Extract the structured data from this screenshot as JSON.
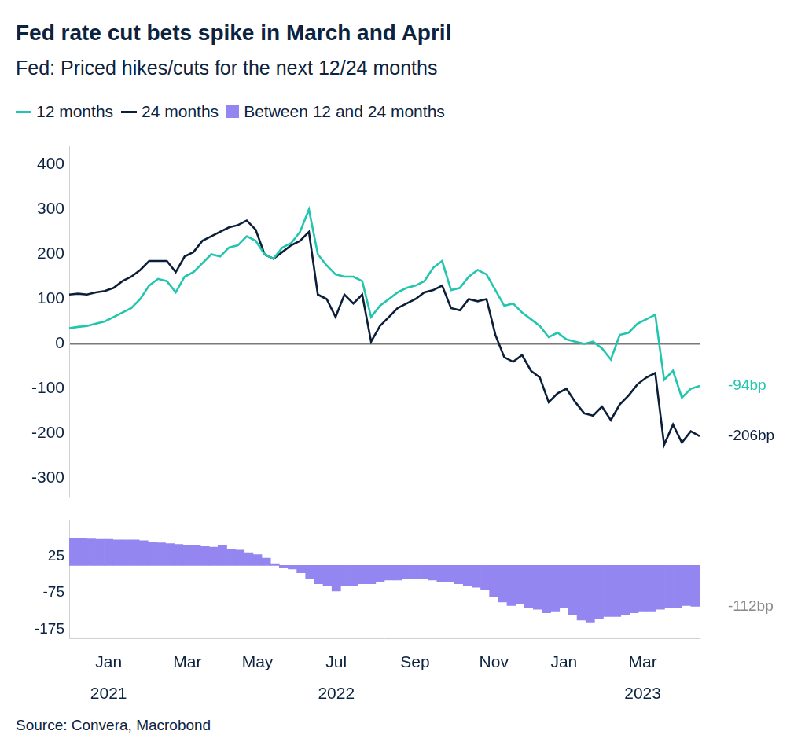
{
  "chart_data": [
    {
      "type": "line",
      "title": "Fed rate cut bets spike in March and April",
      "subtitle": "Fed: Priced hikes/cuts for the next 12/24 months",
      "legend": "top-left",
      "grid": false,
      "tick_labels": "y",
      "categories": [
        null,
        null,
        null,
        null,
        "Jan 2021",
        null,
        null,
        null,
        null,
        null,
        null,
        null,
        null,
        "Mar",
        null,
        null,
        null,
        null,
        null,
        null,
        null,
        "May",
        null,
        null,
        null,
        null,
        null,
        null,
        null,
        null,
        "Jul 2022",
        null,
        null,
        null,
        null,
        null,
        null,
        null,
        null,
        "Sep",
        null,
        null,
        null,
        null,
        null,
        null,
        null,
        null,
        "Nov",
        null,
        null,
        null,
        null,
        null,
        null,
        null,
        "Jan",
        null,
        null,
        null,
        null,
        null,
        null,
        null,
        null,
        "Mar 2023",
        null,
        null,
        null,
        null,
        null,
        null
      ],
      "ylim": [
        -340,
        440
      ],
      "yticks": [
        -300,
        -200,
        -100,
        0,
        100,
        200,
        300,
        400
      ],
      "series": [
        {
          "name": "12 months",
          "color": "#22c5ad",
          "end_label": "-94bp",
          "values": [
            35,
            38,
            40,
            45,
            50,
            60,
            70,
            80,
            100,
            130,
            145,
            140,
            115,
            150,
            160,
            180,
            200,
            195,
            215,
            220,
            240,
            230,
            200,
            190,
            215,
            225,
            250,
            300,
            200,
            175,
            155,
            150,
            150,
            140,
            60,
            85,
            100,
            115,
            125,
            130,
            140,
            170,
            185,
            120,
            125,
            150,
            165,
            155,
            120,
            85,
            90,
            70,
            55,
            40,
            15,
            25,
            10,
            5,
            0,
            5,
            -10,
            -35,
            20,
            25,
            45,
            55,
            65,
            -80,
            -60,
            -120,
            -100,
            -94
          ]
        },
        {
          "name": "24 months",
          "color": "#0b1f3a",
          "end_label": "-206bp",
          "values": [
            110,
            112,
            110,
            115,
            118,
            125,
            140,
            150,
            165,
            185,
            185,
            185,
            160,
            195,
            205,
            230,
            240,
            250,
            260,
            265,
            275,
            255,
            200,
            190,
            205,
            220,
            230,
            250,
            110,
            100,
            60,
            110,
            90,
            110,
            5,
            40,
            60,
            80,
            90,
            100,
            115,
            120,
            130,
            80,
            75,
            100,
            95,
            100,
            20,
            -30,
            -40,
            -25,
            -60,
            -75,
            -130,
            -110,
            -100,
            -130,
            -155,
            -160,
            -140,
            -170,
            -135,
            -115,
            -90,
            -75,
            -65,
            -225,
            -180,
            -220,
            -195,
            -206
          ]
        }
      ]
    },
    {
      "type": "bar",
      "grid": false,
      "source": "Source: Convera, Macrobond",
      "categories": [
        null,
        null,
        null,
        null,
        "Jan 2021",
        null,
        null,
        null,
        null,
        null,
        null,
        null,
        null,
        "Mar",
        null,
        null,
        null,
        null,
        null,
        null,
        null,
        "May",
        null,
        null,
        null,
        null,
        null,
        null,
        null,
        null,
        "Jul 2022",
        null,
        null,
        null,
        null,
        null,
        null,
        null,
        null,
        "Sep",
        null,
        null,
        null,
        null,
        null,
        null,
        null,
        null,
        "Nov",
        null,
        null,
        null,
        null,
        null,
        null,
        null,
        "Jan",
        null,
        null,
        null,
        null,
        null,
        null,
        null,
        null,
        "Mar 2023",
        null,
        null,
        null,
        null,
        null,
        null
      ],
      "ylim": [
        -200,
        125
      ],
      "yticks": [
        -175,
        -75,
        25
      ],
      "series": [
        {
          "name": "Between 12 and 24 months",
          "color": "#9386f0",
          "end_label": "-112bp",
          "values": [
            75,
            75,
            73,
            72,
            72,
            70,
            70,
            70,
            68,
            65,
            62,
            60,
            58,
            55,
            55,
            52,
            50,
            55,
            45,
            42,
            35,
            30,
            20,
            5,
            -5,
            -10,
            -20,
            -35,
            -50,
            -55,
            -70,
            -55,
            -55,
            -50,
            -50,
            -45,
            -40,
            -40,
            -35,
            -35,
            -35,
            -40,
            -45,
            -45,
            -50,
            -55,
            -60,
            -65,
            -85,
            -100,
            -110,
            -105,
            -115,
            -120,
            -130,
            -125,
            -115,
            -135,
            -150,
            -155,
            -145,
            -140,
            -140,
            -135,
            -130,
            -125,
            -125,
            -120,
            -115,
            -115,
            -110,
            -112
          ]
        }
      ]
    }
  ]
}
